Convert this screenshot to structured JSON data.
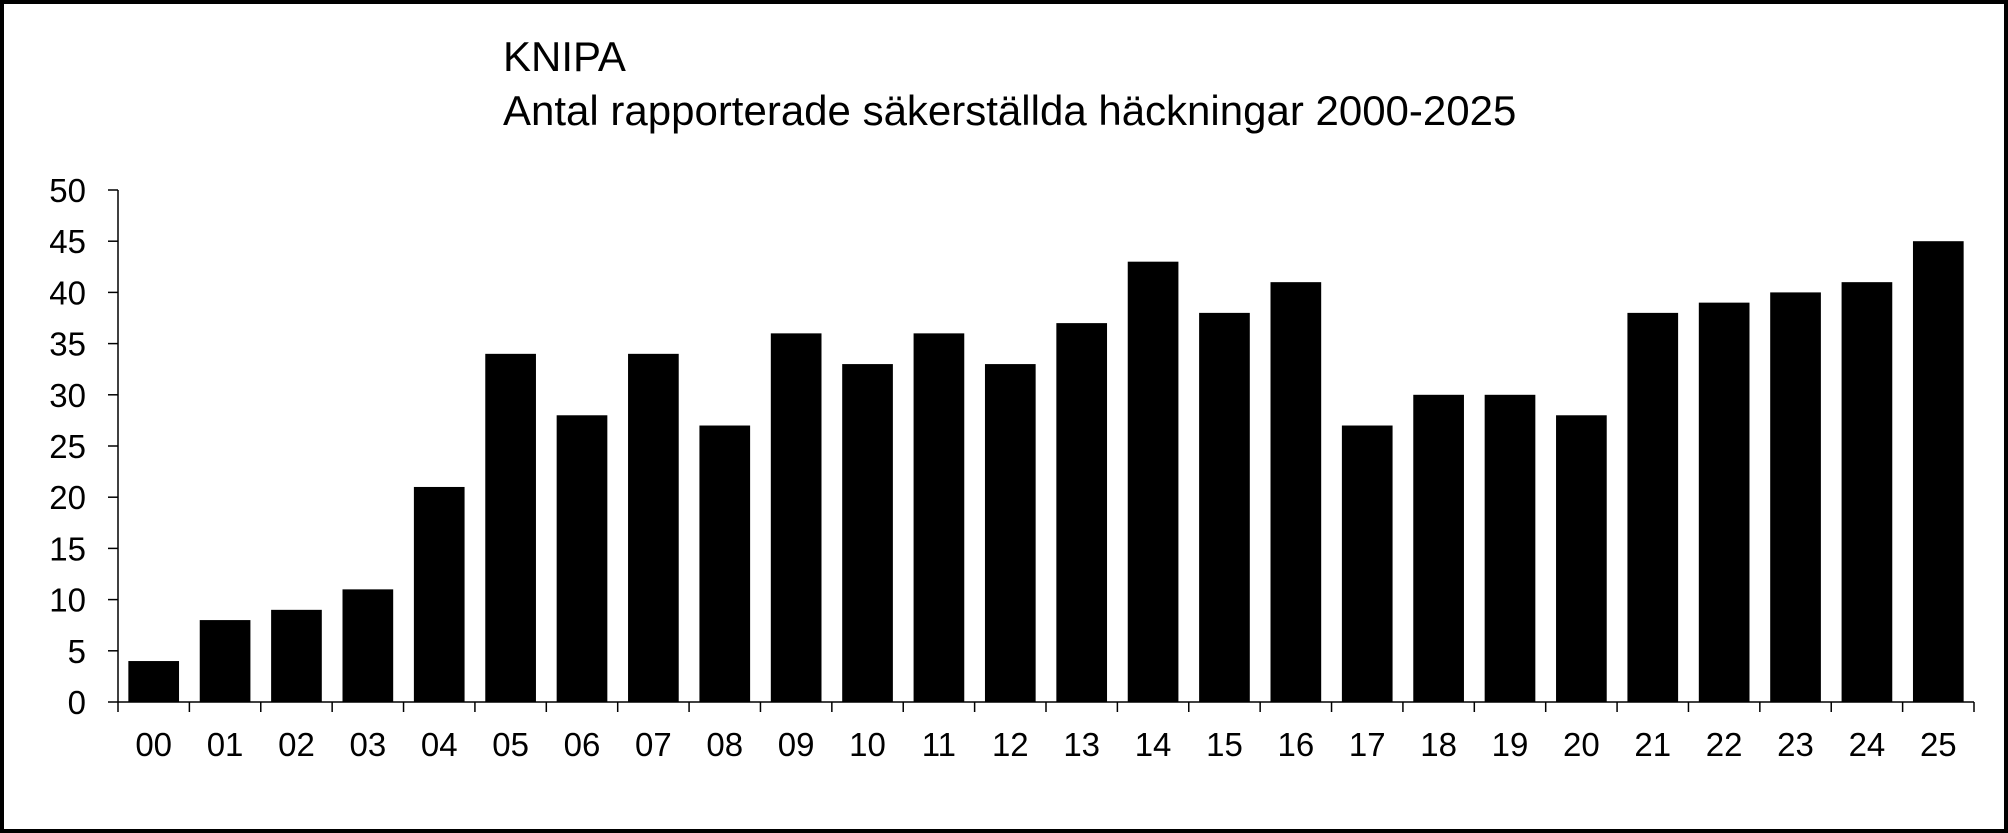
{
  "chart_data": {
    "type": "bar",
    "title": "KNIPA",
    "subtitle": "Antal rapporterade säkerställda häckningar 2000-2025",
    "xlabel": "",
    "ylabel": "",
    "ylim": [
      0,
      50
    ],
    "yticks": [
      0,
      5,
      10,
      15,
      20,
      25,
      30,
      35,
      40,
      45,
      50
    ],
    "grid": false,
    "categories": [
      "00",
      "01",
      "02",
      "03",
      "04",
      "05",
      "06",
      "07",
      "08",
      "09",
      "10",
      "11",
      "12",
      "13",
      "14",
      "15",
      "16",
      "17",
      "18",
      "19",
      "20",
      "21",
      "22",
      "23",
      "24",
      "25"
    ],
    "values": [
      4,
      8,
      9,
      11,
      21,
      34,
      28,
      34,
      27,
      36,
      33,
      36,
      33,
      37,
      43,
      38,
      41,
      27,
      30,
      30,
      28,
      38,
      39,
      40,
      41,
      45
    ],
    "bar_color": "#000000"
  }
}
